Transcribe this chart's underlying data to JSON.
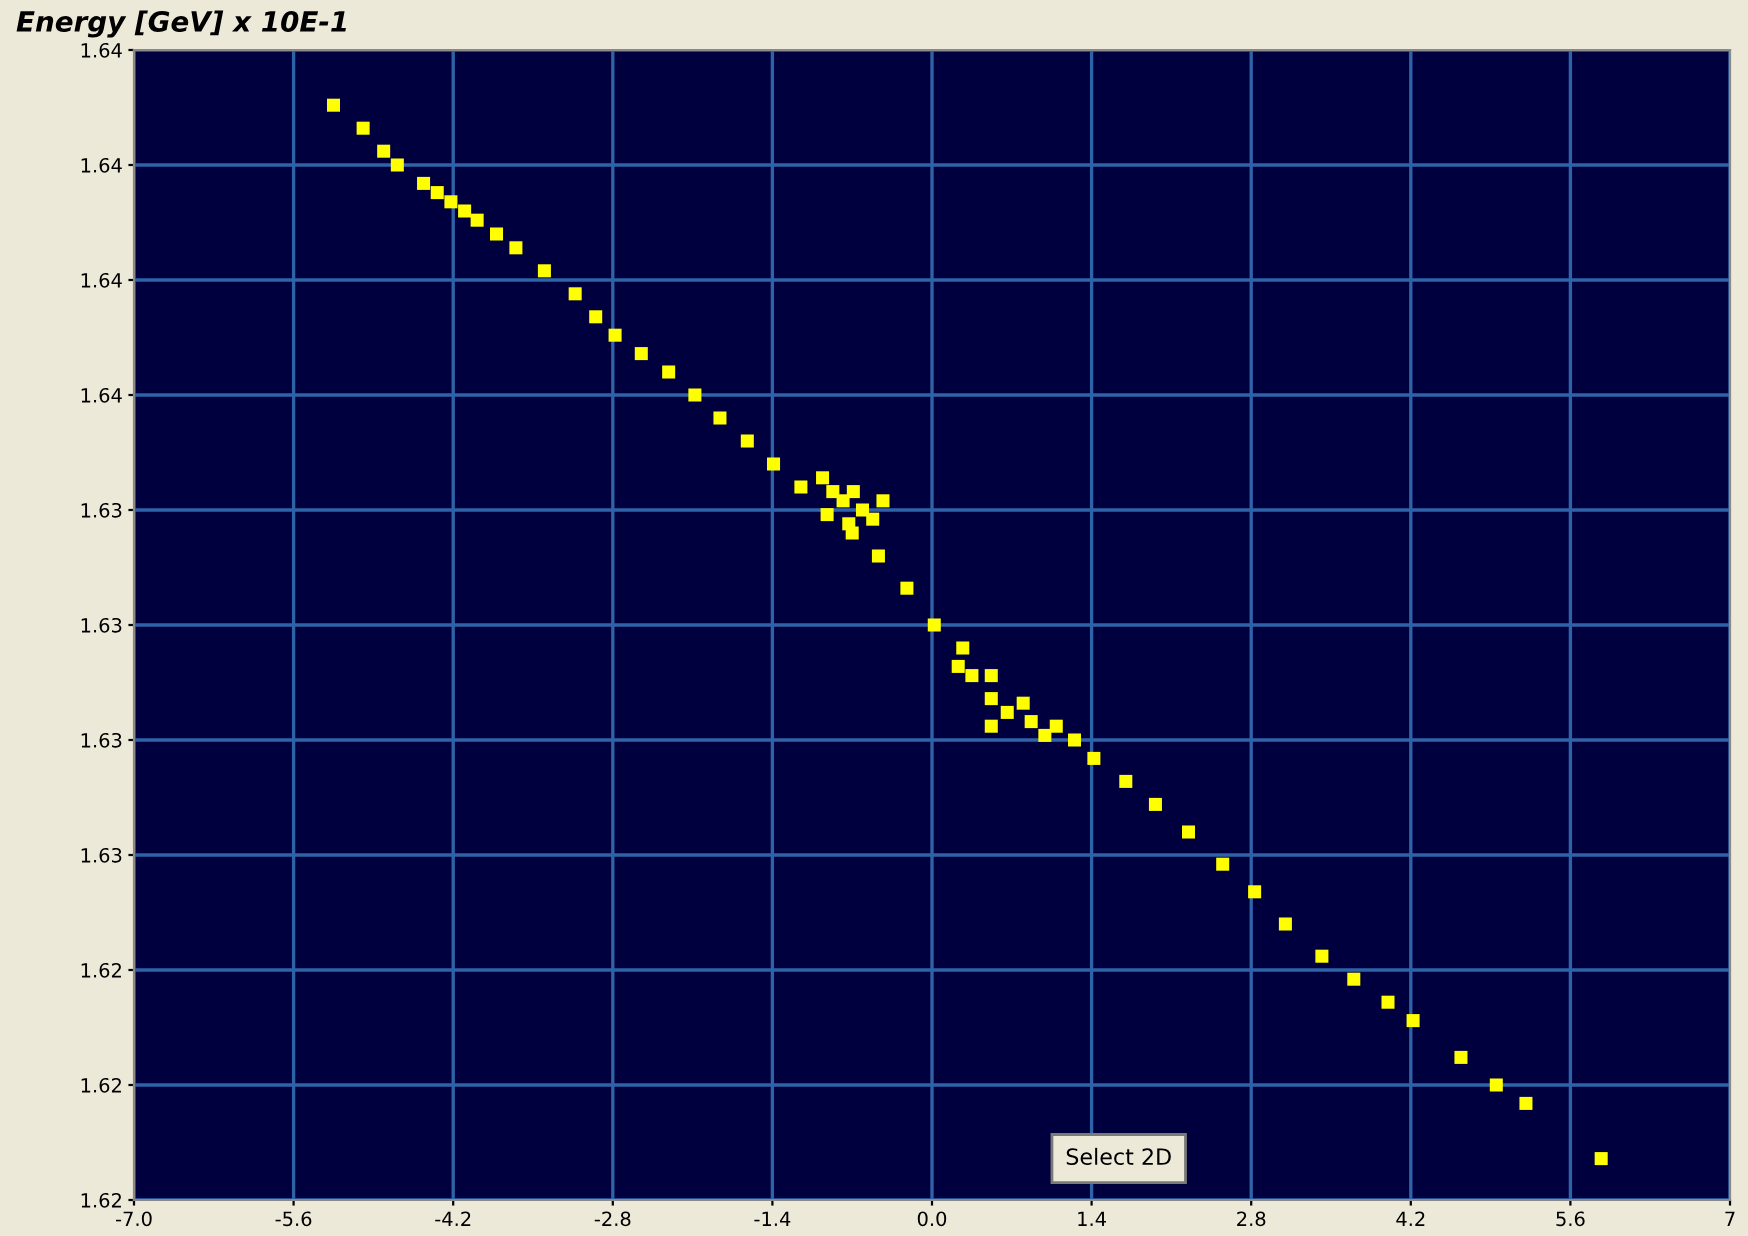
{
  "chart_data": {
    "type": "scatter",
    "ylabel": "Energy [GeV] x 10E-1",
    "annotations": [
      "Select 2D"
    ],
    "xlim": [
      -7.0,
      7.0
    ],
    "xticks": [
      {
        "value": -7.0,
        "label": "-7.0"
      },
      -5.6,
      -4.2,
      -2.8,
      -1.4,
      {
        "value": 0.0,
        "label": "0.0"
      },
      1.4,
      2.8,
      4.2,
      5.6,
      {
        "value": 7.0,
        "label": "7"
      }
    ],
    "ylim": [
      1.62,
      1.645
    ],
    "yticks": [
      {
        "value": 1.62,
        "label": "1.62"
      },
      {
        "value": 1.6225,
        "label": "1.62"
      },
      {
        "value": 1.625,
        "label": "1.62"
      },
      {
        "value": 1.6275,
        "label": "1.63"
      },
      {
        "value": 1.63,
        "label": "1.63"
      },
      {
        "value": 1.6325,
        "label": "1.63"
      },
      {
        "value": 1.635,
        "label": "1.63"
      },
      {
        "value": 1.6375,
        "label": "1.64"
      },
      {
        "value": 1.64,
        "label": "1.64"
      },
      {
        "value": 1.6425,
        "label": "1.64"
      },
      {
        "value": 1.645,
        "label": "1.64"
      }
    ],
    "grid": true,
    "marker": "square",
    "series": [
      {
        "color": "#ffff00",
        "x": [
          -5.25,
          -4.99,
          -4.81,
          -4.69,
          -4.46,
          -4.34,
          -4.22,
          -4.1,
          -3.99,
          -3.82,
          -3.65,
          -3.4,
          -3.13,
          -2.95,
          -2.78,
          -2.55,
          -2.31,
          -2.08,
          -1.86,
          -1.62,
          -1.39,
          -1.15,
          -0.92,
          -0.7,
          -0.47,
          -0.22,
          0.02,
          0.27,
          0.52,
          0.8,
          1.09,
          1.25,
          1.42,
          1.7,
          1.96,
          2.25,
          2.55,
          2.83,
          3.1,
          3.42,
          3.7,
          4.0,
          4.22,
          4.64,
          4.95,
          5.21,
          5.87,
          -0.87,
          -0.78,
          -0.69,
          -0.61,
          -0.52,
          -0.73,
          -0.43,
          -0.96,
          0.23,
          0.35,
          0.52,
          0.52,
          0.66,
          0.87,
          0.99
        ],
        "values": [
          1.6438,
          1.6433,
          1.6428,
          1.6425,
          1.6421,
          1.6419,
          1.6417,
          1.6415,
          1.6413,
          1.641,
          1.6407,
          1.6402,
          1.6397,
          1.6392,
          1.6388,
          1.6384,
          1.638,
          1.6375,
          1.637,
          1.6365,
          1.636,
          1.6355,
          1.6349,
          1.6345,
          1.634,
          1.6333,
          1.6325,
          1.632,
          1.6314,
          1.6308,
          1.6303,
          1.63,
          1.6296,
          1.6291,
          1.6286,
          1.628,
          1.6273,
          1.6267,
          1.626,
          1.6253,
          1.6248,
          1.6243,
          1.6239,
          1.6231,
          1.6225,
          1.6221,
          1.6209,
          1.6354,
          1.6352,
          1.6354,
          1.635,
          1.6348,
          1.6347,
          1.6352,
          1.6357,
          1.6316,
          1.6314,
          1.6309,
          1.6303,
          1.6306,
          1.6304,
          1.6301
        ]
      }
    ]
  }
}
